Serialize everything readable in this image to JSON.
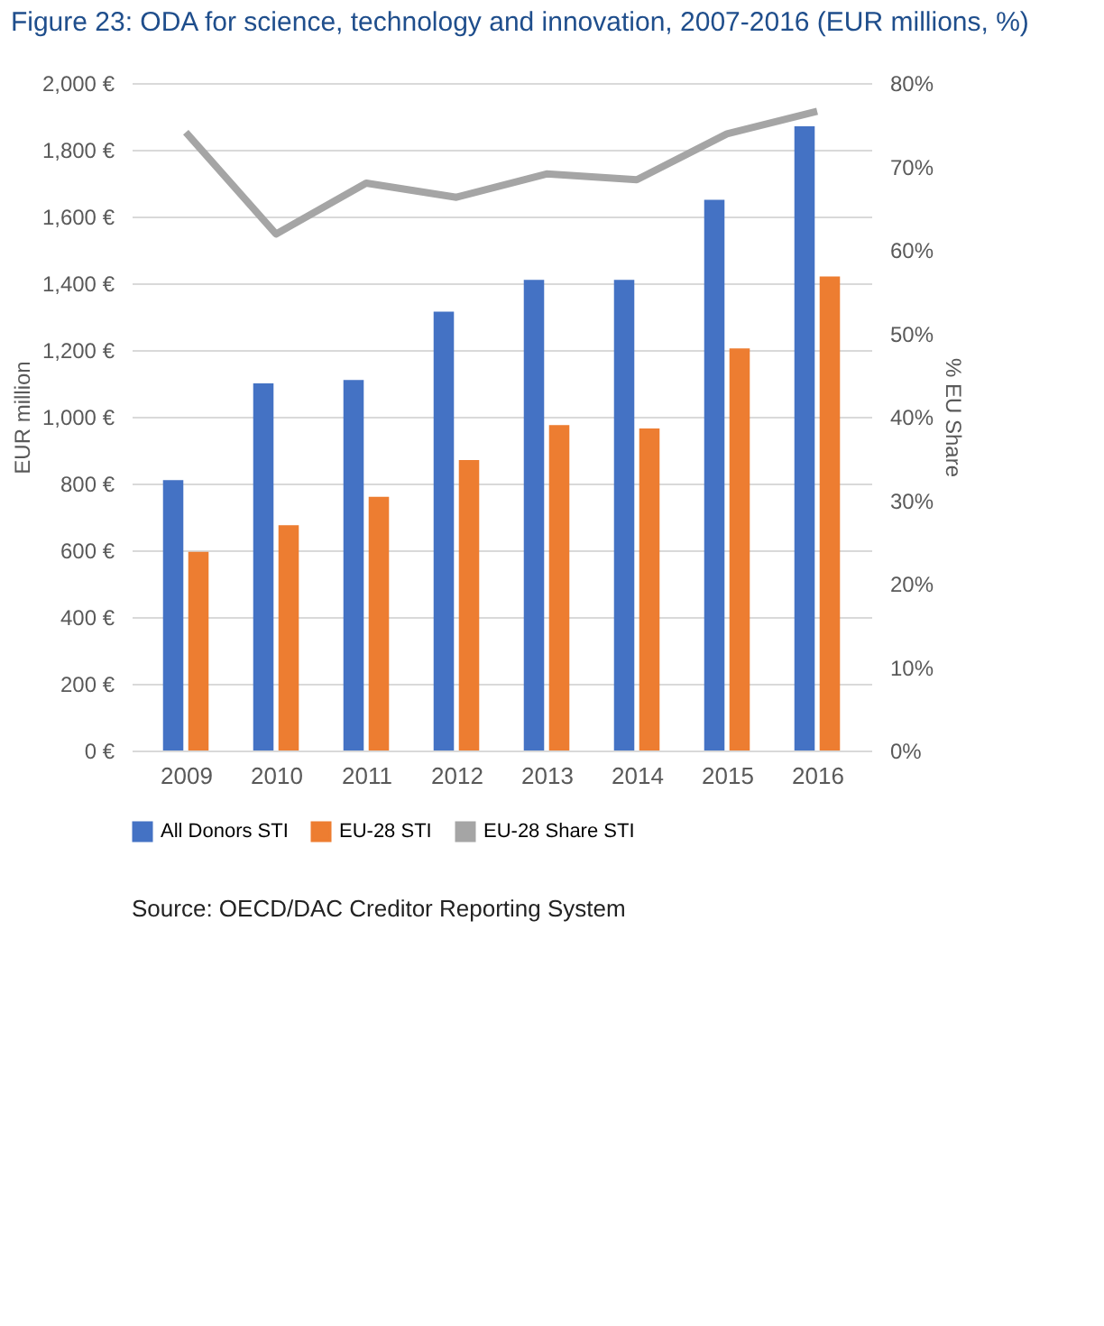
{
  "chart_data": {
    "type": "bar",
    "title": "Figure 23: ODA for science, technology and innovation, 2007-2016 (EUR millions, %)",
    "ylabel": "EUR million",
    "y2label": "% EU Share",
    "categories": [
      "2009",
      "2010",
      "2011",
      "2012",
      "2013",
      "2014",
      "2015",
      "2016"
    ],
    "series": [
      {
        "name": "All Donors STI",
        "color": "#4472c4",
        "values": [
          810,
          1100,
          1110,
          1315,
          1410,
          1410,
          1650,
          1870
        ]
      },
      {
        "name": "EU-28 STI",
        "color": "#ed7d31",
        "values": [
          595,
          675,
          760,
          870,
          975,
          965,
          1205,
          1420
        ]
      },
      {
        "name": "EU-28 Share  STI",
        "type": "line",
        "axis": "y2",
        "color": "#a5a5a5",
        "values": [
          74.1,
          61.9,
          68.0,
          66.3,
          69.1,
          68.4,
          73.9,
          76.6
        ]
      }
    ],
    "ylim": [
      0,
      2000
    ],
    "yticks": [
      {
        "value": 0,
        "label": "0 €"
      },
      {
        "value": 200,
        "label": "200 €"
      },
      {
        "value": 400,
        "label": "400 €"
      },
      {
        "value": 600,
        "label": "600 €"
      },
      {
        "value": 800,
        "label": "800 €"
      },
      {
        "value": 1000,
        "label": "1,000 €"
      },
      {
        "value": 1200,
        "label": "1,200 €"
      },
      {
        "value": 1400,
        "label": "1,400 €"
      },
      {
        "value": 1600,
        "label": "1,600 €"
      },
      {
        "value": 1800,
        "label": "1,800 €"
      },
      {
        "value": 2000,
        "label": "2,000 €"
      }
    ],
    "y2lim": [
      0,
      80
    ],
    "y2ticks": [
      {
        "value": 0,
        "label": "0%"
      },
      {
        "value": 10,
        "label": "10%"
      },
      {
        "value": 20,
        "label": "20%"
      },
      {
        "value": 30,
        "label": "30%"
      },
      {
        "value": 40,
        "label": "40%"
      },
      {
        "value": 50,
        "label": "50%"
      },
      {
        "value": 60,
        "label": "60%"
      },
      {
        "value": 70,
        "label": "70%"
      },
      {
        "value": 80,
        "label": "80%"
      }
    ],
    "grid": "y",
    "legend": "bottom",
    "annotations": [
      "Source: OECD/DAC Creditor Reporting System"
    ]
  }
}
